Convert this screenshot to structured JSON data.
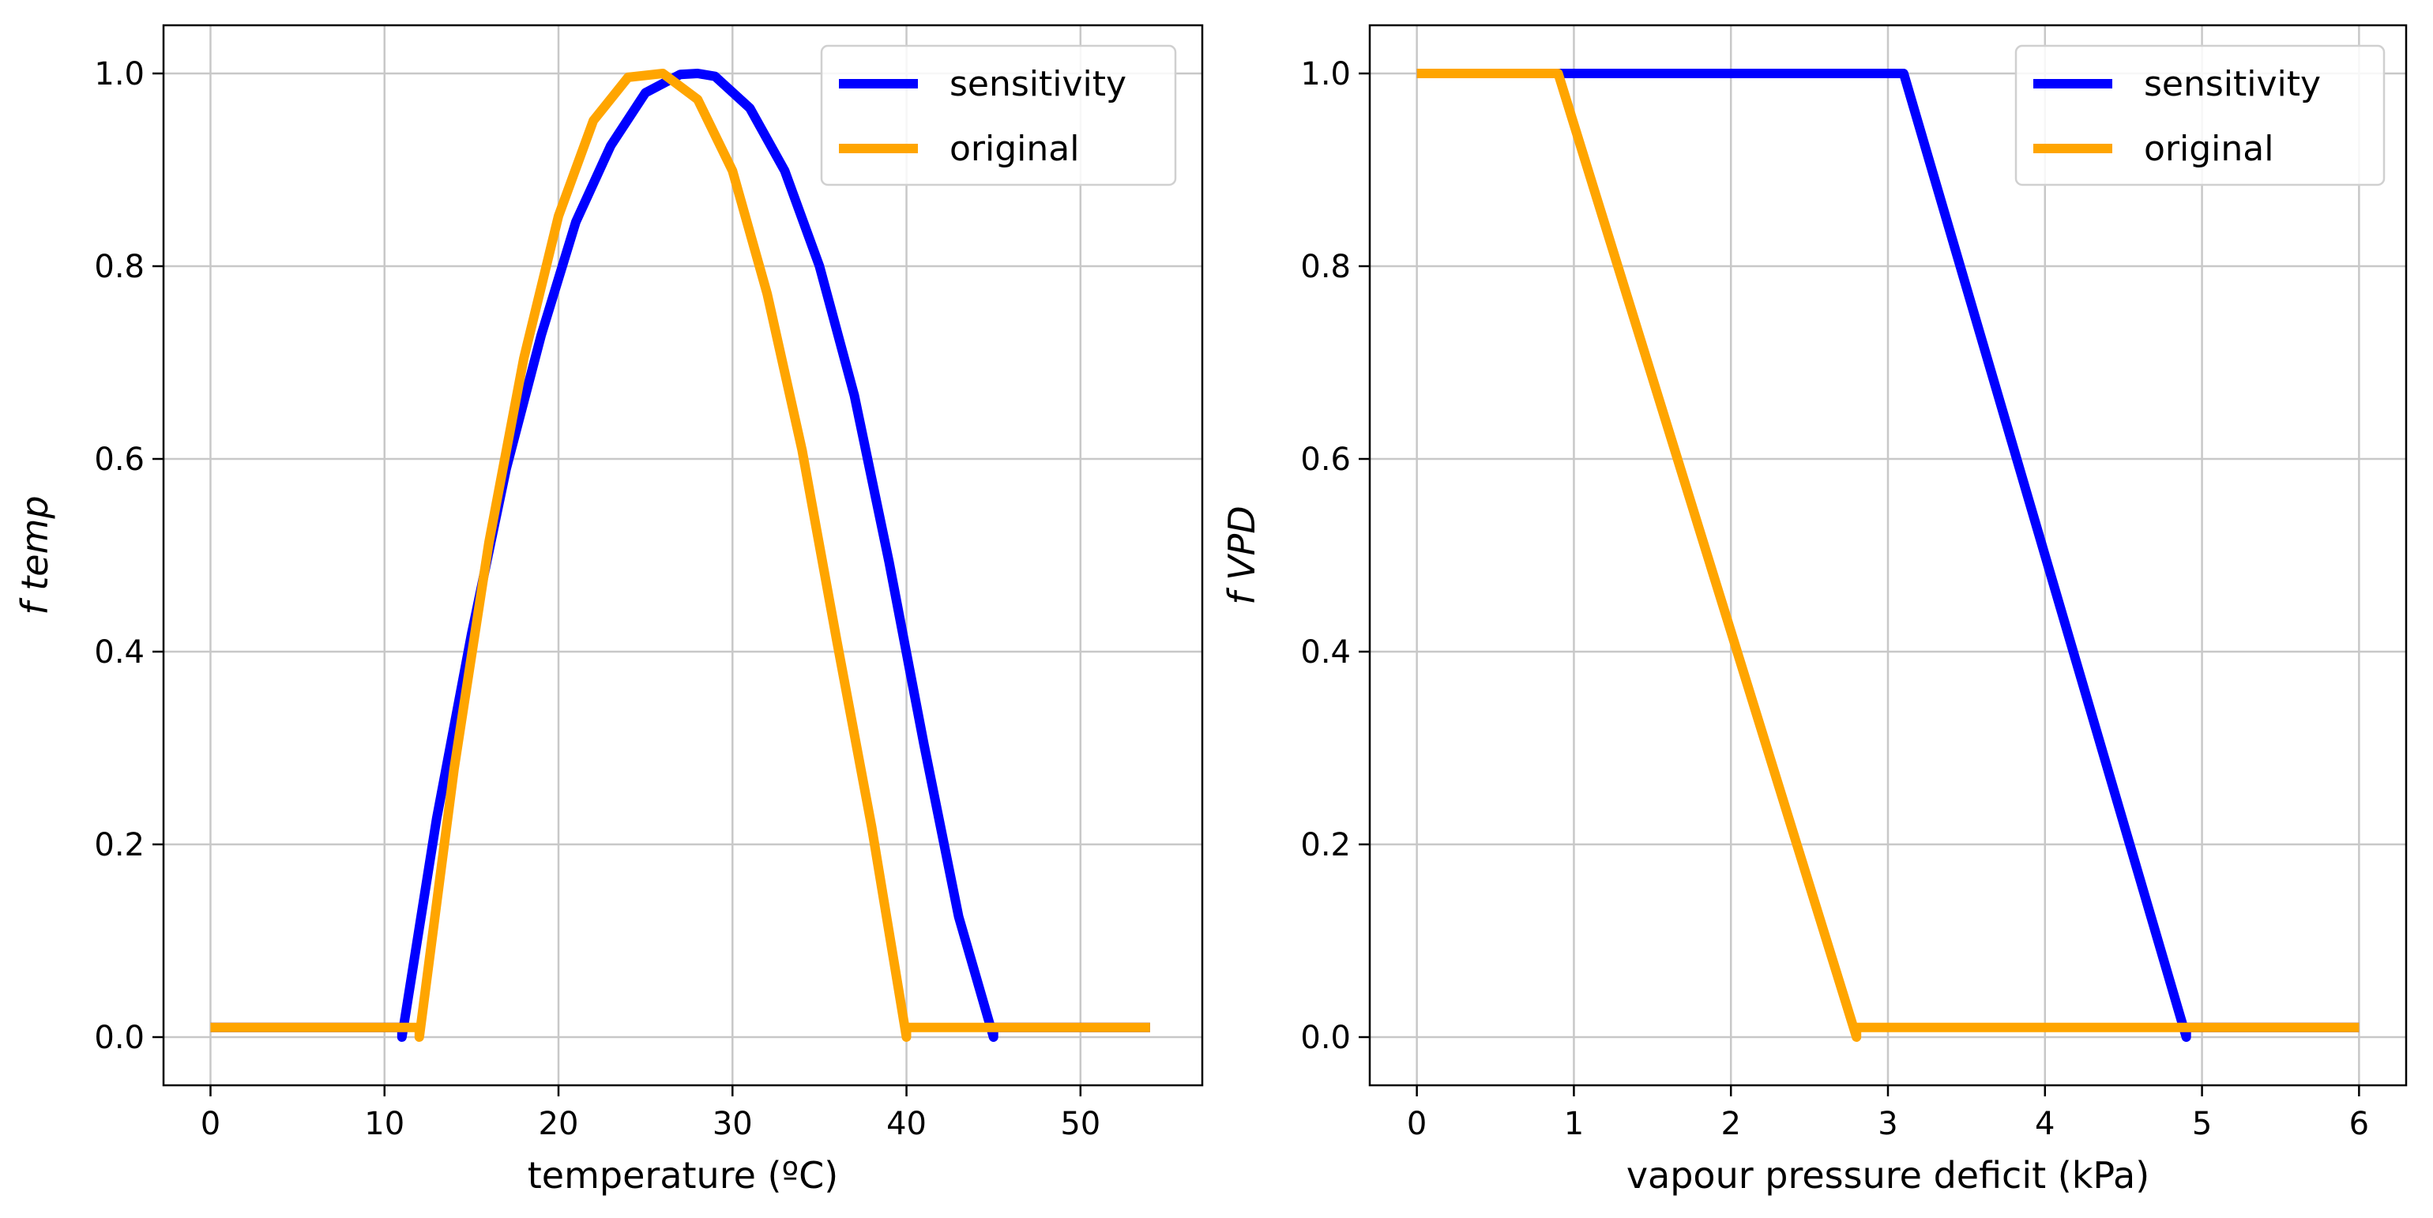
{
  "chart_data": [
    {
      "type": "line",
      "title": "",
      "xlabel": "temperature (ºC)",
      "ylabel": "f temp",
      "xlim": [
        -2.7,
        57
      ],
      "ylim": [
        -0.05,
        1.05
      ],
      "xticks": [
        0,
        10,
        20,
        30,
        40,
        50
      ],
      "yticks": [
        0.0,
        0.2,
        0.4,
        0.6,
        0.8,
        1.0
      ],
      "xtick_labels": [
        "0",
        "10",
        "20",
        "30",
        "40",
        "50"
      ],
      "ytick_labels": [
        "0.0",
        "0.2",
        "0.4",
        "0.6",
        "0.8",
        "1.0"
      ],
      "grid": true,
      "legend_position": "top-right",
      "series": [
        {
          "name": "sensitivity",
          "color": "#0000ff",
          "x": [
            0,
            11,
            11,
            13,
            15,
            17,
            19,
            21,
            23,
            25,
            27,
            28,
            29,
            31,
            33,
            35,
            37,
            39,
            41,
            43,
            45,
            45,
            54
          ],
          "y": [
            0.01,
            0.01,
            0.0,
            0.227,
            0.418,
            0.59,
            0.728,
            0.846,
            0.925,
            0.98,
            0.999,
            1.0,
            0.997,
            0.964,
            0.899,
            0.8,
            0.666,
            0.493,
            0.304,
            0.125,
            0.0,
            0.01,
            0.01
          ]
        },
        {
          "name": "original",
          "color": "#ffa500",
          "x": [
            0,
            12,
            12,
            14,
            16,
            18,
            20,
            22,
            24,
            26,
            28,
            30,
            32,
            34,
            36,
            38,
            40,
            40,
            54
          ],
          "y": [
            0.01,
            0.01,
            0.0,
            0.278,
            0.513,
            0.704,
            0.852,
            0.951,
            0.996,
            1.0,
            0.973,
            0.899,
            0.771,
            0.609,
            0.411,
            0.218,
            0.0,
            0.01,
            0.01
          ]
        }
      ]
    },
    {
      "type": "line",
      "title": "",
      "xlabel": "vapour pressure deficit (kPa)",
      "ylabel": "f VPD",
      "xlim": [
        -0.3,
        6.3
      ],
      "ylim": [
        -0.05,
        1.05
      ],
      "xticks": [
        0,
        1,
        2,
        3,
        4,
        5,
        6
      ],
      "yticks": [
        0.0,
        0.2,
        0.4,
        0.6,
        0.8,
        1.0
      ],
      "xtick_labels": [
        "0",
        "1",
        "2",
        "3",
        "4",
        "5",
        "6"
      ],
      "ytick_labels": [
        "0.0",
        "0.2",
        "0.4",
        "0.6",
        "0.8",
        "1.0"
      ],
      "grid": true,
      "legend_position": "top-right",
      "series": [
        {
          "name": "sensitivity",
          "color": "#0000ff",
          "x": [
            0,
            3.1,
            4.9,
            4.9,
            6
          ],
          "y": [
            1.0,
            1.0,
            0.0,
            0.01,
            0.01
          ]
        },
        {
          "name": "original",
          "color": "#ffa500",
          "x": [
            0,
            0.9,
            2.8,
            2.8,
            6
          ],
          "y": [
            1.0,
            1.0,
            0.0,
            0.01,
            0.01
          ]
        }
      ]
    }
  ]
}
